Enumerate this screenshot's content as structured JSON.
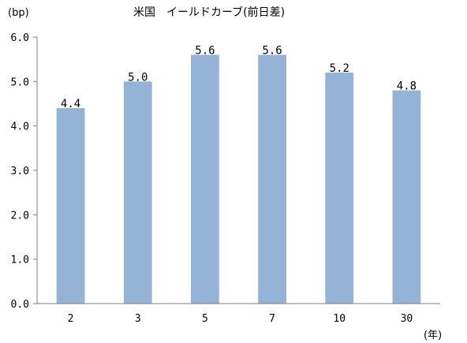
{
  "chart_data": {
    "type": "bar",
    "title": "米国　イールドカーブ(前日差)",
    "ylabel": "(bp)",
    "xlabel": "(年)",
    "categories": [
      "2",
      "3",
      "5",
      "7",
      "10",
      "30"
    ],
    "values": [
      4.4,
      5.0,
      5.6,
      5.6,
      5.2,
      4.8
    ],
    "data_labels": [
      "4.4",
      "5.0",
      "5.6",
      "5.6",
      "5.2",
      "4.8"
    ],
    "ylim": [
      0,
      6
    ],
    "yticks": [
      "0.0",
      "1.0",
      "2.0",
      "3.0",
      "4.0",
      "5.0",
      "6.0"
    ],
    "grid": false,
    "legend": "none",
    "bar_color": "#95b3d7",
    "axis_color": "#7f7f7f"
  }
}
